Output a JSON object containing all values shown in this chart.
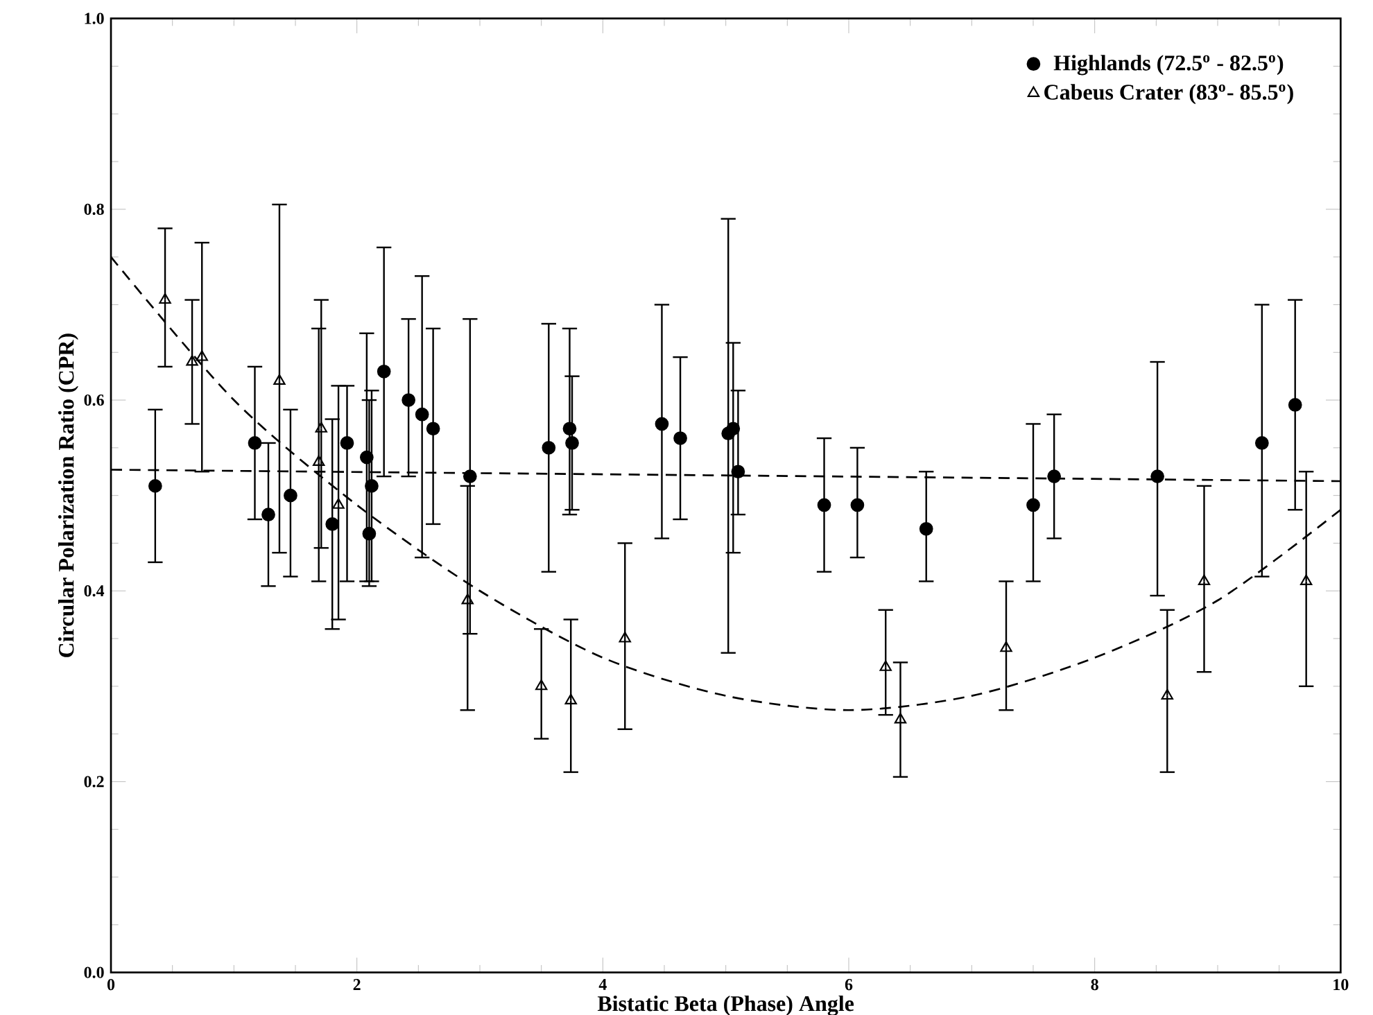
{
  "chart_data": {
    "type": "scatter",
    "xlabel": "Bistatic Beta (Phase) Angle",
    "ylabel": "Circular Polarization Ratio (CPR)",
    "xlim": [
      0,
      10
    ],
    "ylim": [
      0.0,
      1.0
    ],
    "xticks": [
      0,
      2,
      4,
      6,
      8,
      10
    ],
    "yticks": [
      {
        "value": 0,
        "label": "0.0"
      },
      0.2,
      0.4,
      0.6,
      0.8,
      {
        "value": 1,
        "label": "1.0"
      }
    ],
    "grid": false,
    "legend": "top right",
    "series": [
      {
        "name": "Highlands (72.5$^{o}$ - 82.5$^{o}$)",
        "color": "#000000",
        "marker": "circle",
        "x": [
          0.36,
          1.17,
          1.28,
          1.46,
          1.8,
          1.92,
          2.08,
          2.1,
          2.12,
          2.22,
          2.42,
          2.53,
          2.62,
          2.92,
          3.56,
          3.73,
          3.75,
          4.48,
          4.63,
          5.02,
          5.06,
          5.1,
          5.8,
          6.07,
          6.63,
          7.5,
          7.67,
          8.51,
          9.36,
          9.63
        ],
        "values": [
          0.51,
          0.555,
          0.48,
          0.5,
          0.47,
          0.555,
          0.54,
          0.46,
          0.51,
          0.63,
          0.6,
          0.585,
          0.57,
          0.52,
          0.55,
          0.57,
          0.555,
          0.575,
          0.56,
          0.565,
          0.57,
          0.525,
          0.49,
          0.49,
          0.465,
          0.49,
          0.52,
          0.52,
          0.555,
          0.595
        ],
        "errors": [
          [
            0.43,
            0.59
          ],
          [
            0.475,
            0.635
          ],
          [
            0.405,
            0.555
          ],
          [
            0.415,
            0.59
          ],
          [
            0.36,
            0.58
          ],
          [
            0.41,
            0.615
          ],
          [
            0.41,
            0.67
          ],
          [
            0.405,
            0.6
          ],
          [
            0.41,
            0.61
          ],
          [
            0.52,
            0.76
          ],
          [
            0.52,
            0.685
          ],
          [
            0.435,
            0.73
          ],
          [
            0.47,
            0.675
          ],
          [
            0.355,
            0.685
          ],
          [
            0.42,
            0.68
          ],
          [
            0.48,
            0.675
          ],
          [
            0.485,
            0.625
          ],
          [
            0.455,
            0.7
          ],
          [
            0.475,
            0.645
          ],
          [
            0.335,
            0.79
          ],
          [
            0.44,
            0.66
          ],
          [
            0.48,
            0.61
          ],
          [
            0.42,
            0.56
          ],
          [
            0.435,
            0.55
          ],
          [
            0.41,
            0.525
          ],
          [
            0.41,
            0.575
          ],
          [
            0.455,
            0.585
          ],
          [
            0.395,
            0.64
          ],
          [
            0.415,
            0.7
          ],
          [
            0.485,
            0.705
          ]
        ]
      },
      {
        "name": "Cabeus Crater (83$^{o}$- 85.5$^{o}$)",
        "color": "#000000",
        "marker": "triangle",
        "x": [
          0.44,
          0.66,
          0.74,
          1.37,
          1.69,
          1.71,
          1.85,
          2.9,
          3.5,
          3.74,
          4.18,
          6.3,
          6.42,
          7.28,
          8.59,
          8.89,
          9.72
        ],
        "values": [
          0.705,
          0.64,
          0.645,
          0.62,
          0.535,
          0.57,
          0.49,
          0.39,
          0.3,
          0.285,
          0.35,
          0.32,
          0.265,
          0.34,
          0.29,
          0.41,
          0.41
        ],
        "errors": [
          [
            0.635,
            0.78
          ],
          [
            0.575,
            0.705
          ],
          [
            0.525,
            0.765
          ],
          [
            0.44,
            0.805
          ],
          [
            0.41,
            0.675
          ],
          [
            0.445,
            0.705
          ],
          [
            0.37,
            0.615
          ],
          [
            0.275,
            0.51
          ],
          [
            0.245,
            0.36
          ],
          [
            0.21,
            0.37
          ],
          [
            0.255,
            0.45
          ],
          [
            0.27,
            0.38
          ],
          [
            0.205,
            0.325
          ],
          [
            0.275,
            0.41
          ],
          [
            0.21,
            0.38
          ],
          [
            0.315,
            0.51
          ],
          [
            0.3,
            0.525
          ]
        ]
      },
      {
        "type": "line",
        "color": "#000000",
        "line_style": "dashed",
        "marker": "none",
        "x": [
          0,
          10
        ],
        "values": [
          0.527,
          0.515
        ]
      },
      {
        "type": "line",
        "color": "#000000",
        "line_style": "dashed",
        "marker": "none",
        "x": [
          0,
          1,
          2,
          3,
          4,
          5,
          6,
          7,
          8,
          9,
          10
        ],
        "values": [
          0.75,
          0.6,
          0.49,
          0.4,
          0.33,
          0.29,
          0.275,
          0.29,
          0.33,
          0.39,
          0.485
        ]
      }
    ]
  }
}
